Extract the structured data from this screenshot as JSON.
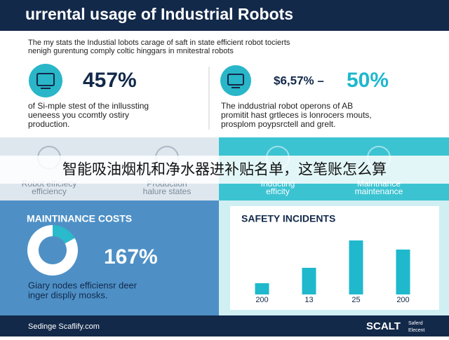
{
  "header": {
    "title": "urrental usage of Industrial Robots"
  },
  "intro": [
    "The my stats the Industial lobots carage of saft in state efficient robot tocierts",
    "nenigh gurentung comply coltic hinggars in mnitestral robots"
  ],
  "stats": [
    {
      "value": "457%",
      "text": [
        "of Si-mple stest of the inllussting",
        "ueneess you ccomtly ostiry",
        "production."
      ]
    },
    {
      "value": "$6,57% –",
      "highlight": "50%",
      "text": [
        "The inddustrial robot operons of AB",
        "promitit hast grtleces is lonrocers mouts,",
        "prosplom poypsrctell and grelt."
      ]
    }
  ],
  "features": [
    [
      "Robot efficiecy",
      "efficiency"
    ],
    [
      "Production",
      "halure states"
    ],
    [
      "Inducting",
      "efficity"
    ],
    [
      "Maintnance",
      "maintenance"
    ]
  ],
  "banner": "智能吸油烟机和净水器进补贴名单，这笔账怎么算",
  "maintenance": {
    "value": "167%",
    "text": [
      "Giary nodes efficiensr deer",
      "inger displiy mosks."
    ]
  },
  "chart_data": [
    {
      "type": "pie",
      "title": "MAINTINANCE COSTS",
      "values": [
        17,
        83
      ],
      "colors": [
        "#2bb9cc",
        "#ffffff"
      ]
    },
    {
      "type": "bar",
      "title": "SAFETY INCIDENTS",
      "categories": [
        "200",
        "13",
        "25",
        "200"
      ],
      "values": [
        16,
        38,
        77,
        64
      ],
      "color": "#1fb8cc",
      "ylim": [
        0,
        80
      ]
    }
  ],
  "footer": {
    "left": "Sedinge Scaflify.com",
    "logo": "SCALT",
    "logo_sub": [
      "Saferd",
      "Elecent"
    ]
  }
}
